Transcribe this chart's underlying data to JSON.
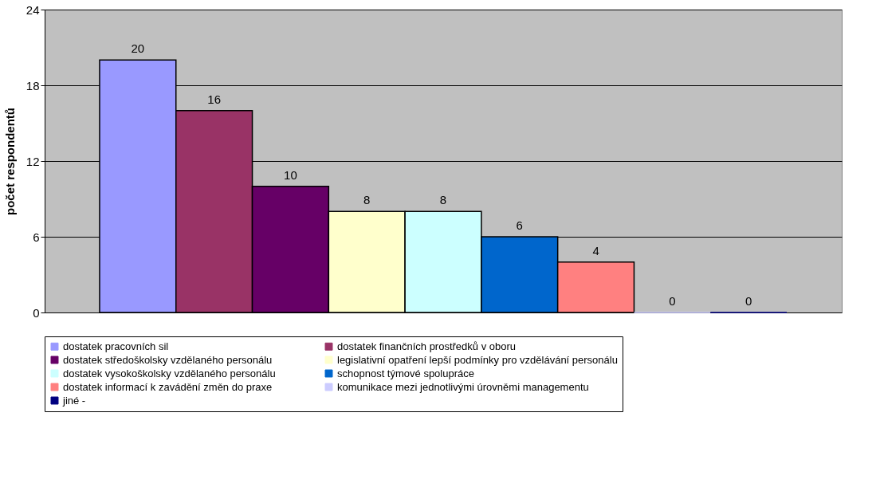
{
  "chart_data": {
    "type": "bar",
    "categories": [
      null
    ],
    "series": [
      {
        "name": "dostatek pracovních sil",
        "color": "#9999ff",
        "values": [
          20
        ]
      },
      {
        "name": "dostatek finančních prostředků v oboru",
        "color": "#993366",
        "values": [
          16
        ]
      },
      {
        "name": "dostatek středoškolsky vzdělaného personálu",
        "color": "#660066",
        "values": [
          10
        ]
      },
      {
        "name": "legislativní opatření lepší podmínky pro vzdělávání personálu",
        "color": "#ffffcc",
        "values": [
          8
        ]
      },
      {
        "name": "dostatek vysokoškolsky vzdělaného personálu",
        "color": "#ccffff",
        "values": [
          8
        ]
      },
      {
        "name": "schopnost týmové spolupráce",
        "color": "#0066cc",
        "values": [
          6
        ]
      },
      {
        "name": "dostatek informací k zavádění změn do praxe",
        "color": "#ff8080",
        "values": [
          4
        ]
      },
      {
        "name": "komunikace mezi jednotlivými úrovněmi managementu",
        "color": "#ccccff",
        "values": [
          0
        ]
      },
      {
        "name": "jiné -",
        "color": "#000080",
        "values": [
          0
        ]
      }
    ],
    "ylabel": "počet respondentů",
    "ylim": [
      0,
      24
    ],
    "yticks": [
      0,
      6,
      12,
      18,
      24
    ],
    "grid": "y",
    "legend": "bottom",
    "tick_labels": "y",
    "data_labels": true
  }
}
